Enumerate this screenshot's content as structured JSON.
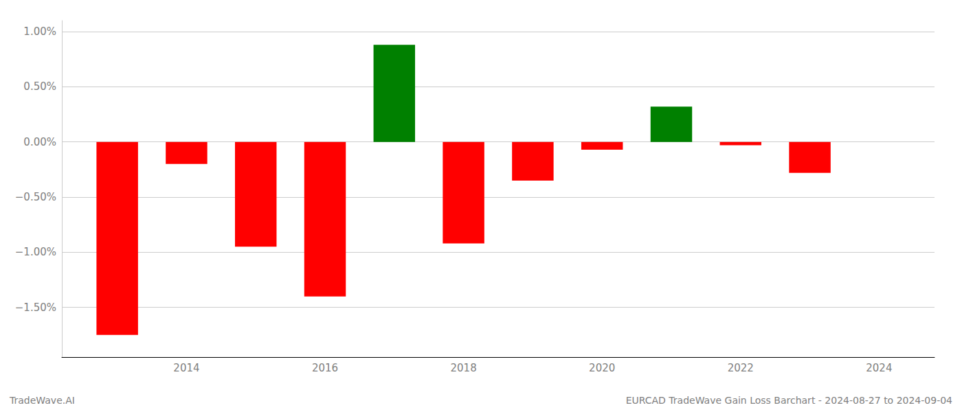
{
  "chart_data": {
    "type": "bar",
    "x": [
      2013,
      2014,
      2015,
      2016,
      2017,
      2018,
      2019,
      2020,
      2021,
      2022,
      2023
    ],
    "values": [
      -1.75,
      -0.2,
      -0.95,
      -1.4,
      0.88,
      -0.92,
      -0.35,
      -0.07,
      0.32,
      -0.03,
      -0.28
    ],
    "colors": [
      "#ff0000",
      "#ff0000",
      "#ff0000",
      "#ff0000",
      "#008000",
      "#ff0000",
      "#ff0000",
      "#ff0000",
      "#008000",
      "#ff0000",
      "#ff0000"
    ],
    "xlim": [
      2012.2,
      2024.8
    ],
    "xticks": [
      2014,
      2016,
      2018,
      2020,
      2022,
      2024
    ],
    "ylim": [
      -1.95,
      1.1
    ],
    "yticks": [
      {
        "value": -1.5,
        "label": "−1.50%"
      },
      {
        "value": -1.0,
        "label": "−1.00%"
      },
      {
        "value": -0.5,
        "label": "−0.50%"
      },
      {
        "value": 0.0,
        "label": "0.00%"
      },
      {
        "value": 0.5,
        "label": "0.50%"
      },
      {
        "value": 1.0,
        "label": "1.00%"
      }
    ],
    "grid": true,
    "annotations": [
      "TradeWave.AI",
      "EURCAD TradeWave Gain Loss Barchart - 2024-08-27 to 2024-09-04"
    ]
  }
}
